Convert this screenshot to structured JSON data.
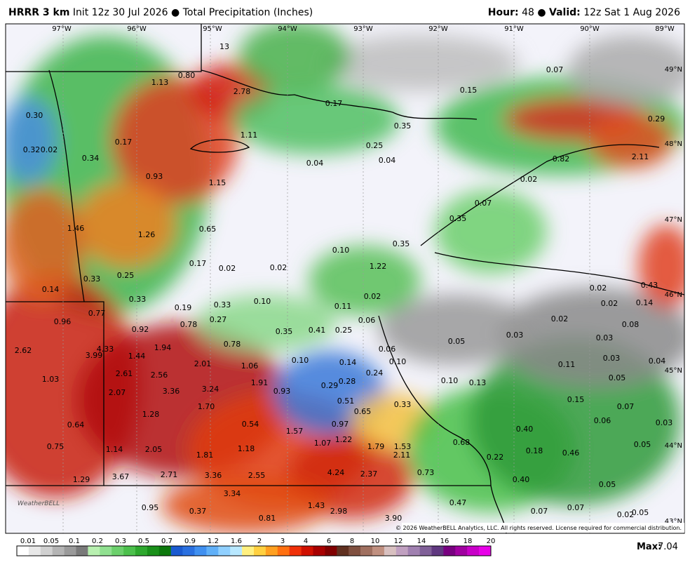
{
  "header": {
    "model": "HRRR 3 km",
    "init": "Init 12z 30 Jul 2026",
    "product": "Total Precipitation (Inches)",
    "hour_label": "Hour:",
    "hour": "48",
    "valid_label": "Valid:",
    "valid": "12z Sat 1 Aug 2026"
  },
  "lon_labels": [
    "97°W",
    "96°W",
    "95°W",
    "94°W",
    "93°W",
    "92°W",
    "91°W",
    "90°W",
    "89°W"
  ],
  "lat_labels": [
    "49°N",
    "48°N",
    "47°N",
    "46°N",
    "45°N",
    "44°N",
    "43°N"
  ],
  "point_labels": [
    "13",
    "0.80",
    "1.13",
    "2.78",
    "0.07",
    "0.15",
    "0.17",
    "0.30",
    "0.35",
    "1.11",
    "0.29",
    "0.17",
    "0.32",
    "0.02",
    "0.25",
    "2.11",
    "0.34",
    "0.04",
    "0.04",
    "0.82",
    "0.93",
    "0.02",
    "1.15",
    "0.07",
    "0.35",
    "1.46",
    "1.26",
    "0.65",
    "0.35",
    "0.10",
    "1.22",
    "0.17",
    "0.02",
    "0.02",
    "0.25",
    "0.33",
    "0.14",
    "0.02",
    "0.43",
    "0.33",
    "0.02",
    "0.02",
    "0.14",
    "0.10",
    "0.11",
    "0.19",
    "0.33",
    "0.77",
    "0.96",
    "0.27",
    "0.06",
    "0.02",
    "0.08",
    "0.92",
    "0.78",
    "0.35",
    "0.41",
    "0.25",
    "0.03",
    "0.03",
    "0.05",
    "0.78",
    "1.94",
    "4.33",
    "2.62",
    "3.99",
    "1.44",
    "0.06",
    "0.10",
    "0.14",
    "0.10",
    "0.03",
    "0.04",
    "0.11",
    "2.01",
    "1.06",
    "2.61",
    "2.56",
    "0.24",
    "1.03",
    "1.91",
    "0.93",
    "0.29",
    "0.28",
    "0.10",
    "0.13",
    "0.05",
    "2.07",
    "3.36",
    "3.24",
    "0.51",
    "0.33",
    "0.15",
    "0.07",
    "1.70",
    "1.28",
    "0.65",
    "0.97",
    "0.64",
    "0.54",
    "0.06",
    "0.03",
    "0.40",
    "1.57",
    "0.75",
    "1.14",
    "2.05",
    "1.18",
    "1.07",
    "1.22",
    "1.79",
    "1.53",
    "0.68",
    "0.05",
    "0.18",
    "0.46",
    "1.81",
    "2.11",
    "0.22",
    "3.67",
    "2.71",
    "3.36",
    "2.55",
    "4.24",
    "2.37",
    "0.73",
    "1.29",
    "0.40",
    "0.05",
    "3.34",
    "0.47",
    "1.43",
    "0.95",
    "0.37",
    "2.98",
    "0.07",
    "0.07",
    "0.02",
    "0.05",
    "0.81",
    "3.90"
  ],
  "copyright": "© 2026 WeatherBELL Analytics, LLC. All rights reserved. License required for commercial distribution.",
  "logo": "WeatherBELL",
  "colorbar": {
    "labels": [
      "0.01",
      "0.05",
      "0.1",
      "0.2",
      "0.3",
      "0.5",
      "0.7",
      "0.9",
      "1.2",
      "1.6",
      "2",
      "3",
      "4",
      "6",
      "8",
      "10",
      "12",
      "14",
      "16",
      "18",
      "20"
    ]
  },
  "max": {
    "label": "Max:",
    "value": "7.04"
  }
}
